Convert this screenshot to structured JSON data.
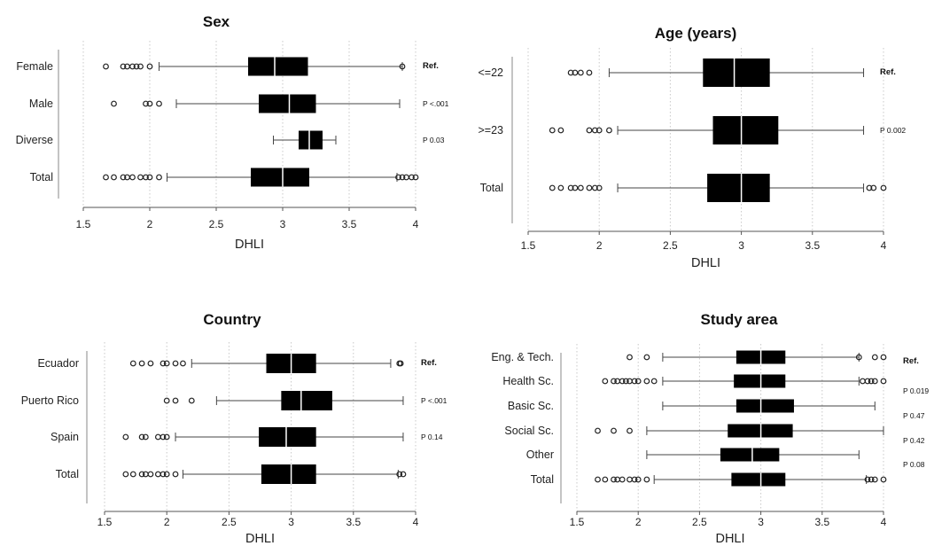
{
  "chart_data": [
    {
      "type": "boxplot",
      "title": "Sex",
      "xlabel": "DHLI",
      "xlim": [
        1.5,
        4
      ],
      "xticks": [
        "1.5",
        "2",
        "2.5",
        "3",
        "3.5",
        "4"
      ],
      "grid": "vertical dotted",
      "rows": [
        {
          "label": "Female",
          "whisker_low": 2.07,
          "q1": 2.74,
          "median": 2.94,
          "q3": 3.19,
          "whisker_high": 3.9,
          "outliers": [
            1.67,
            1.8,
            1.83,
            1.87,
            1.9,
            1.93,
            2.0,
            3.9
          ],
          "annotation": "Ref."
        },
        {
          "label": "Male",
          "whisker_low": 2.2,
          "q1": 2.82,
          "median": 3.05,
          "q3": 3.25,
          "whisker_high": 3.88,
          "outliers": [
            1.73,
            1.97,
            2.0,
            2.07
          ],
          "annotation": "P <.001"
        },
        {
          "label": "Diverse",
          "whisker_low": 2.93,
          "q1": 3.12,
          "median": 3.2,
          "q3": 3.3,
          "whisker_high": 3.4,
          "outliers": [],
          "annotation": "P 0.03"
        },
        {
          "label": "Total",
          "whisker_low": 2.13,
          "q1": 2.76,
          "median": 3.0,
          "q3": 3.2,
          "whisker_high": 3.86,
          "outliers": [
            1.67,
            1.73,
            1.8,
            1.83,
            1.87,
            1.93,
            1.97,
            2.0,
            2.07,
            3.87,
            3.9,
            3.93,
            3.97,
            4.0
          ],
          "annotation": ""
        }
      ]
    },
    {
      "type": "boxplot",
      "title": "Age (years)",
      "xlabel": "DHLI",
      "xlim": [
        1.5,
        4
      ],
      "xticks": [
        "1.5",
        "2",
        "2.5",
        "3",
        "3.5",
        "4"
      ],
      "grid": "vertical dotted",
      "rows": [
        {
          "label": "<=22",
          "whisker_low": 2.07,
          "q1": 2.73,
          "median": 2.95,
          "q3": 3.2,
          "whisker_high": 3.86,
          "outliers": [
            1.8,
            1.83,
            1.87,
            1.93
          ],
          "annotation": "Ref."
        },
        {
          "label": ">=23",
          "whisker_low": 2.13,
          "q1": 2.8,
          "median": 3.0,
          "q3": 3.26,
          "whisker_high": 3.86,
          "outliers": [
            1.67,
            1.73,
            1.93,
            1.97,
            2.0,
            2.07
          ],
          "annotation": "P 0.002"
        },
        {
          "label": "Total",
          "whisker_low": 2.13,
          "q1": 2.76,
          "median": 3.0,
          "q3": 3.2,
          "whisker_high": 3.86,
          "outliers": [
            1.67,
            1.73,
            1.8,
            1.83,
            1.87,
            1.93,
            1.97,
            2.0,
            3.9,
            3.93,
            4.0
          ],
          "annotation": ""
        }
      ]
    },
    {
      "type": "boxplot",
      "title": "Country",
      "xlabel": "DHLI",
      "xlim": [
        1.5,
        4
      ],
      "xticks": [
        "1.5",
        "2",
        "2.5",
        "3",
        "3.5",
        "4"
      ],
      "grid": "vertical dotted",
      "rows": [
        {
          "label": "Ecuador",
          "whisker_low": 2.2,
          "q1": 2.8,
          "median": 3.0,
          "q3": 3.2,
          "whisker_high": 3.8,
          "outliers": [
            1.73,
            1.8,
            1.87,
            1.97,
            2.0,
            2.07,
            2.13,
            3.87,
            3.88
          ],
          "annotation": "Ref."
        },
        {
          "label": "Puerto Rico",
          "whisker_low": 2.4,
          "q1": 2.92,
          "median": 3.08,
          "q3": 3.33,
          "whisker_high": 3.9,
          "outliers": [
            2.0,
            2.07,
            2.2
          ],
          "annotation": "P <.001"
        },
        {
          "label": "Spain",
          "whisker_low": 2.07,
          "q1": 2.74,
          "median": 2.96,
          "q3": 3.2,
          "whisker_high": 3.9,
          "outliers": [
            1.67,
            1.8,
            1.83,
            1.93,
            1.97,
            2.0
          ],
          "annotation": "P 0.14"
        },
        {
          "label": "Total",
          "whisker_low": 2.13,
          "q1": 2.76,
          "median": 3.0,
          "q3": 3.2,
          "whisker_high": 3.86,
          "outliers": [
            1.67,
            1.73,
            1.8,
            1.83,
            1.87,
            1.93,
            1.97,
            2.0,
            2.07,
            3.87,
            3.9
          ],
          "annotation": ""
        }
      ]
    },
    {
      "type": "boxplot",
      "title": "Study area",
      "xlabel": "DHLI",
      "xlim": [
        1.5,
        4
      ],
      "xticks": [
        "1.5",
        "2",
        "2.5",
        "3",
        "3.5",
        "4"
      ],
      "grid": "vertical dotted",
      "rows": [
        {
          "label": "Eng. & Tech.",
          "whisker_low": 2.2,
          "q1": 2.8,
          "median": 3.0,
          "q3": 3.2,
          "whisker_high": 3.8,
          "outliers": [
            1.93,
            2.07,
            3.8,
            3.93,
            4.0
          ],
          "annotation": "Ref."
        },
        {
          "label": "Health Sc.",
          "whisker_low": 2.2,
          "q1": 2.78,
          "median": 3.0,
          "q3": 3.2,
          "whisker_high": 3.8,
          "outliers": [
            1.73,
            1.8,
            1.83,
            1.87,
            1.9,
            1.93,
            1.97,
            2.0,
            2.07,
            2.13,
            3.83,
            3.87,
            3.9,
            3.93,
            4.0
          ],
          "annotation": "P 0.019"
        },
        {
          "label": "Basic Sc.",
          "whisker_low": 2.2,
          "q1": 2.8,
          "median": 3.0,
          "q3": 3.27,
          "whisker_high": 3.93,
          "outliers": [],
          "annotation": "P 0.47"
        },
        {
          "label": "Social Sc.",
          "whisker_low": 2.07,
          "q1": 2.73,
          "median": 3.0,
          "q3": 3.26,
          "whisker_high": 4.0,
          "outliers": [
            1.67,
            1.8,
            1.93
          ],
          "annotation": "P 0.42"
        },
        {
          "label": "Other",
          "whisker_low": 2.07,
          "q1": 2.67,
          "median": 2.93,
          "q3": 3.15,
          "whisker_high": 3.8,
          "outliers": [],
          "annotation": "P 0.08"
        },
        {
          "label": "Total",
          "whisker_low": 2.13,
          "q1": 2.76,
          "median": 3.0,
          "q3": 3.2,
          "whisker_high": 3.86,
          "outliers": [
            1.67,
            1.73,
            1.8,
            1.83,
            1.87,
            1.93,
            1.97,
            2.0,
            2.07,
            3.87,
            3.9,
            3.93,
            4.0
          ],
          "annotation": ""
        }
      ]
    }
  ]
}
